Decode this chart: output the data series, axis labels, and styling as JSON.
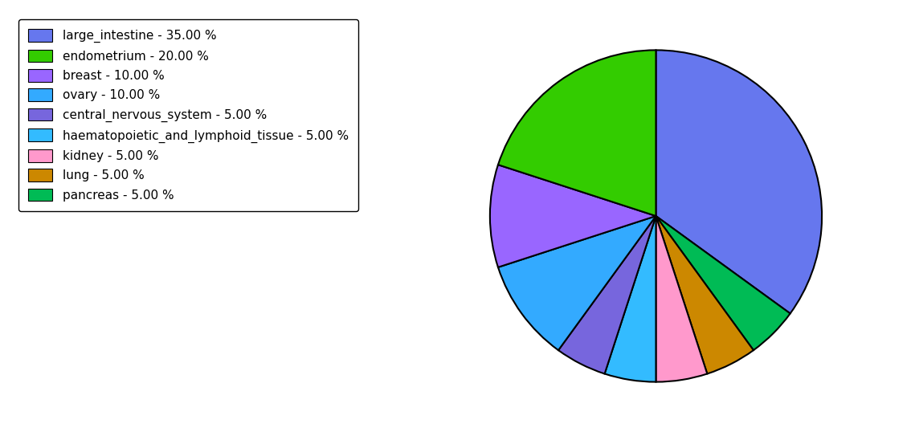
{
  "labels": [
    "large_intestine - 35.00 %",
    "endometrium - 20.00 %",
    "breast - 10.00 %",
    "ovary - 10.00 %",
    "central_nervous_system - 5.00 %",
    "haematopoietic_and_lymphoid_tissue - 5.00 %",
    "kidney - 5.00 %",
    "lung - 5.00 %",
    "pancreas - 5.00 %"
  ],
  "pie_order": [
    "large_intestine",
    "pancreas",
    "lung",
    "kidney",
    "haematopoietic_and_lymphoid_tissue",
    "central_nervous_system",
    "ovary",
    "breast",
    "endometrium"
  ],
  "pie_values": [
    35,
    5,
    5,
    5,
    5,
    5,
    10,
    10,
    20
  ],
  "pie_colors": [
    "#6677ee",
    "#00bb55",
    "#cc8800",
    "#ff99cc",
    "#33bbff",
    "#7766dd",
    "#33aaff",
    "#9966ff",
    "#33cc00"
  ],
  "legend_colors": [
    "#6677ee",
    "#33cc00",
    "#9966ff",
    "#33aaff",
    "#7766dd",
    "#33bbff",
    "#ff99cc",
    "#cc8800",
    "#00bb55"
  ],
  "figsize": [
    11.34,
    5.38
  ],
  "dpi": 100,
  "startangle": 90
}
